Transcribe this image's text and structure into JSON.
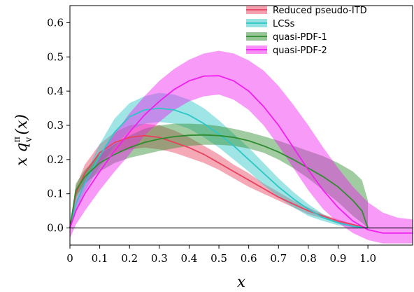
{
  "chart_data": {
    "type": "line",
    "xlabel": "x",
    "ylabel_main": "x q",
    "ylabel_sup": "π",
    "ylabel_sub": "v",
    "ylabel_arg": "(x)",
    "xlim": [
      0,
      1.15
    ],
    "ylim": [
      -0.05,
      0.65
    ],
    "x_ticks": [
      0,
      0.1,
      0.2,
      0.3,
      0.4,
      0.5,
      0.6,
      0.7,
      0.8,
      0.9,
      1.0
    ],
    "x_tick_labels": [
      "0",
      "0.1",
      "0.2",
      "0.3",
      "0.4",
      "0.5",
      "0.6",
      "0.7",
      "0.8",
      "0.9",
      "1.0"
    ],
    "y_ticks": [
      0.0,
      0.1,
      0.2,
      0.3,
      0.4,
      0.5,
      0.6
    ],
    "y_tick_labels": [
      "0.0",
      "0.1",
      "0.2",
      "0.3",
      "0.4",
      "0.5",
      "0.6"
    ],
    "grid": false,
    "legend_position": "top-right",
    "reference_line_y": 0,
    "series": [
      {
        "name": "Reduced pseudo-ITD",
        "color": "#e8415f",
        "x": [
          0,
          0.02,
          0.05,
          0.1,
          0.15,
          0.2,
          0.25,
          0.3,
          0.35,
          0.4,
          0.45,
          0.5,
          0.55,
          0.6,
          0.65,
          0.7,
          0.75,
          0.8,
          0.85,
          0.9,
          0.95,
          1.0
        ],
        "y": [
          0,
          0.1,
          0.16,
          0.22,
          0.25,
          0.265,
          0.27,
          0.265,
          0.25,
          0.235,
          0.215,
          0.19,
          0.165,
          0.14,
          0.115,
          0.09,
          0.07,
          0.05,
          0.035,
          0.02,
          0.01,
          0
        ],
        "upper": [
          0,
          0.12,
          0.185,
          0.245,
          0.28,
          0.3,
          0.305,
          0.3,
          0.285,
          0.265,
          0.24,
          0.215,
          0.185,
          0.16,
          0.13,
          0.105,
          0.08,
          0.06,
          0.04,
          0.025,
          0.012,
          0
        ],
        "lower": [
          0,
          0.08,
          0.14,
          0.195,
          0.22,
          0.23,
          0.235,
          0.23,
          0.22,
          0.205,
          0.19,
          0.17,
          0.145,
          0.12,
          0.1,
          0.08,
          0.06,
          0.04,
          0.028,
          0.015,
          0.008,
          0
        ]
      },
      {
        "name": "LCSs",
        "color": "#2cc6c6",
        "x": [
          0,
          0.02,
          0.05,
          0.1,
          0.15,
          0.2,
          0.25,
          0.3,
          0.35,
          0.4,
          0.45,
          0.5,
          0.55,
          0.6,
          0.65,
          0.7,
          0.75,
          0.8,
          0.85,
          0.9,
          0.95,
          1.0
        ],
        "y": [
          0,
          0.07,
          0.13,
          0.21,
          0.28,
          0.325,
          0.345,
          0.35,
          0.345,
          0.33,
          0.305,
          0.275,
          0.24,
          0.2,
          0.16,
          0.12,
          0.085,
          0.055,
          0.03,
          0.015,
          0.005,
          0
        ],
        "upper": [
          0,
          0.09,
          0.155,
          0.245,
          0.32,
          0.365,
          0.385,
          0.395,
          0.39,
          0.375,
          0.35,
          0.315,
          0.275,
          0.235,
          0.19,
          0.145,
          0.105,
          0.07,
          0.04,
          0.02,
          0.008,
          0
        ],
        "lower": [
          0,
          0.05,
          0.105,
          0.18,
          0.24,
          0.285,
          0.305,
          0.31,
          0.305,
          0.29,
          0.265,
          0.235,
          0.2,
          0.165,
          0.125,
          0.09,
          0.06,
          0.035,
          0.02,
          0.008,
          0.002,
          0
        ]
      },
      {
        "name": "quasi-PDF-1",
        "color": "#2e8b2e",
        "x": [
          0,
          0.02,
          0.05,
          0.1,
          0.15,
          0.2,
          0.25,
          0.3,
          0.35,
          0.4,
          0.45,
          0.5,
          0.55,
          0.6,
          0.65,
          0.7,
          0.75,
          0.8,
          0.85,
          0.9,
          0.95,
          0.98,
          1.0
        ],
        "y": [
          0,
          0.11,
          0.15,
          0.19,
          0.215,
          0.235,
          0.25,
          0.26,
          0.267,
          0.271,
          0.272,
          0.27,
          0.265,
          0.255,
          0.24,
          0.222,
          0.2,
          0.175,
          0.15,
          0.12,
          0.08,
          0.05,
          0
        ],
        "upper": [
          0,
          0.13,
          0.17,
          0.215,
          0.245,
          0.27,
          0.29,
          0.3,
          0.305,
          0.305,
          0.303,
          0.298,
          0.29,
          0.28,
          0.268,
          0.255,
          0.24,
          0.225,
          0.21,
          0.19,
          0.165,
          0.14,
          0.08
        ],
        "lower": [
          0,
          0.09,
          0.13,
          0.165,
          0.19,
          0.205,
          0.215,
          0.225,
          0.233,
          0.24,
          0.243,
          0.243,
          0.24,
          0.232,
          0.22,
          0.2,
          0.175,
          0.145,
          0.11,
          0.075,
          0.035,
          0.015,
          0
        ]
      },
      {
        "name": "quasi-PDF-2",
        "color": "#f01ff0",
        "x": [
          0,
          0.02,
          0.05,
          0.1,
          0.15,
          0.2,
          0.25,
          0.3,
          0.35,
          0.4,
          0.45,
          0.5,
          0.55,
          0.6,
          0.65,
          0.7,
          0.75,
          0.8,
          0.85,
          0.9,
          0.95,
          1.0,
          1.05,
          1.1,
          1.15
        ],
        "y": [
          0,
          0.05,
          0.1,
          0.165,
          0.225,
          0.28,
          0.33,
          0.37,
          0.405,
          0.43,
          0.444,
          0.445,
          0.43,
          0.4,
          0.355,
          0.3,
          0.235,
          0.17,
          0.11,
          0.06,
          0.02,
          -0.005,
          -0.015,
          -0.015,
          -0.015
        ],
        "upper": [
          0,
          0.08,
          0.14,
          0.21,
          0.275,
          0.335,
          0.385,
          0.43,
          0.465,
          0.492,
          0.51,
          0.518,
          0.51,
          0.49,
          0.46,
          0.415,
          0.36,
          0.3,
          0.235,
          0.175,
          0.12,
          0.075,
          0.045,
          0.03,
          0.025
        ],
        "lower": [
          -0.03,
          0.01,
          0.05,
          0.11,
          0.165,
          0.215,
          0.27,
          0.31,
          0.345,
          0.37,
          0.385,
          0.39,
          0.375,
          0.345,
          0.3,
          0.24,
          0.175,
          0.11,
          0.055,
          0.015,
          -0.015,
          -0.035,
          -0.045,
          -0.045,
          -0.045
        ]
      }
    ]
  }
}
